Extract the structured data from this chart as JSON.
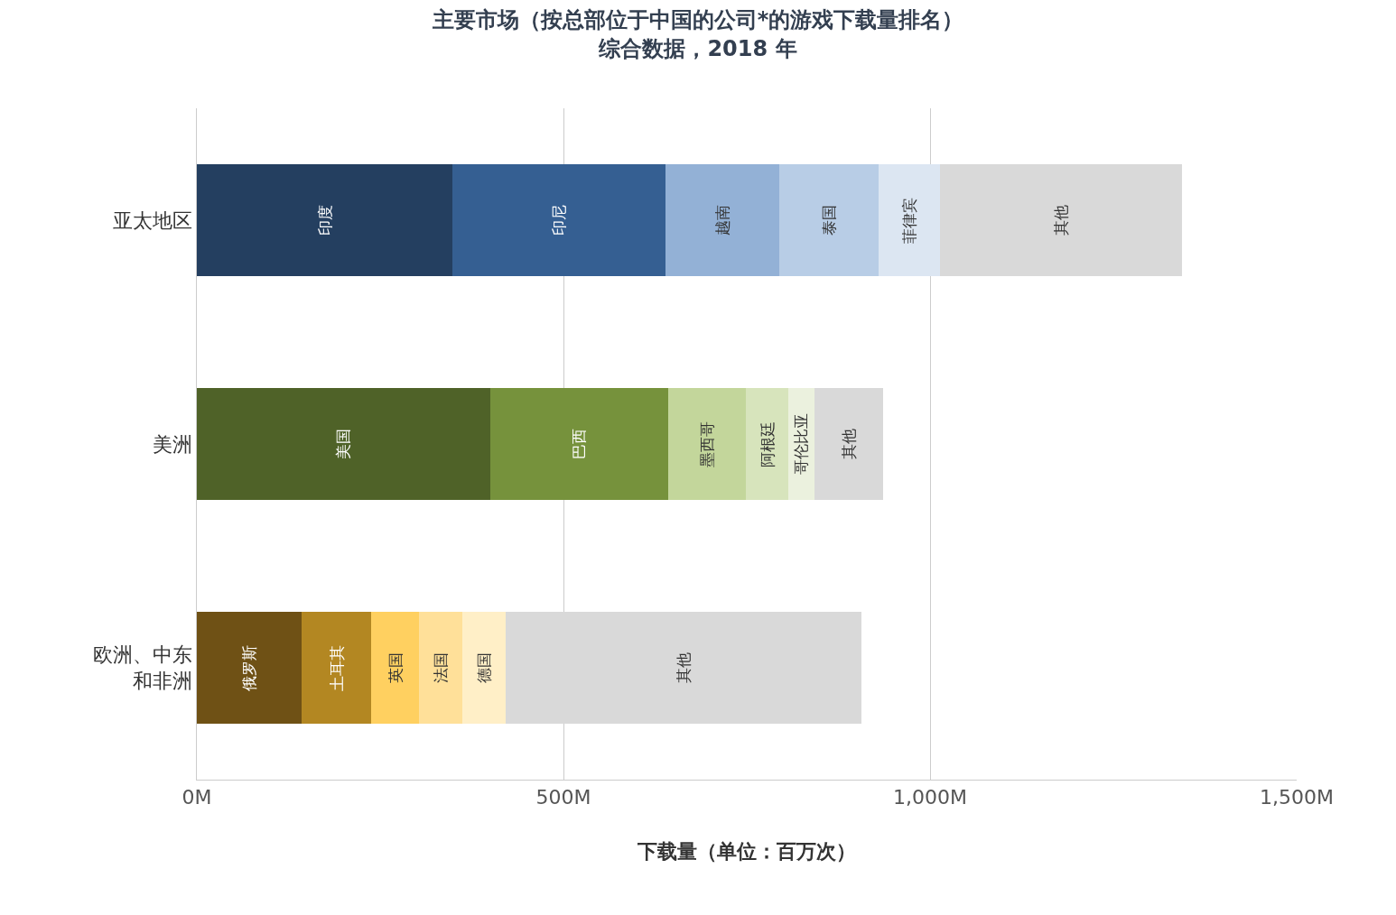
{
  "chart_data": {
    "type": "bar",
    "orientation": "horizontal",
    "stacked": true,
    "title": "主要市场（按总部位于中国的公司*的游戏下载量排名）",
    "subtitle": "综合数据，2018 年",
    "xlabel": "下载量（单位：百万次）",
    "categories": [
      "亚太地区",
      "美洲",
      "欧洲、中东和非洲"
    ],
    "series": [
      {
        "name": "印度",
        "color": "#243f60",
        "values": [
          349,
          null,
          null
        ]
      },
      {
        "name": "印尼",
        "color": "#355f92",
        "values": [
          290,
          null,
          null
        ]
      },
      {
        "name": "越南",
        "color": "#93b1d6",
        "values": [
          155,
          null,
          null
        ]
      },
      {
        "name": "泰国",
        "color": "#b8cde6",
        "values": [
          136,
          null,
          null
        ]
      },
      {
        "name": "菲律宾",
        "color": "#dce6f2",
        "values": [
          84,
          null,
          null
        ]
      },
      {
        "name": "其他",
        "color": "#d9d9d9",
        "values": [
          329,
          null,
          null
        ]
      },
      {
        "name": "美国",
        "color": "#4f6228",
        "values": [
          null,
          400,
          null
        ]
      },
      {
        "name": "巴西",
        "color": "#76923c",
        "values": [
          null,
          243,
          null
        ]
      },
      {
        "name": "墨西哥",
        "color": "#c3d69b",
        "values": [
          null,
          106,
          null
        ]
      },
      {
        "name": "阿根廷",
        "color": "#d7e4bc",
        "values": [
          null,
          58,
          null
        ]
      },
      {
        "name": "哥伦比亚",
        "color": "#ebf1de",
        "values": [
          null,
          35,
          null
        ]
      },
      {
        "name": "其他",
        "color": "#d9d9d9",
        "values": [
          null,
          94,
          null
        ]
      },
      {
        "name": "俄罗斯",
        "color": "#6f5115",
        "values": [
          null,
          null,
          143
        ]
      },
      {
        "name": "土耳其",
        "color": "#b38722",
        "values": [
          null,
          null,
          95
        ]
      },
      {
        "name": "英国",
        "color": "#ffd060",
        "values": [
          null,
          null,
          65
        ]
      },
      {
        "name": "法国",
        "color": "#ffe099",
        "values": [
          null,
          null,
          59
        ]
      },
      {
        "name": "德国",
        "color": "#ffefc7",
        "values": [
          null,
          null,
          59
        ]
      },
      {
        "name": "其他",
        "color": "#d9d9d9",
        "values": [
          null,
          null,
          485
        ]
      }
    ],
    "xlim": [
      0,
      1500
    ],
    "xticks": [
      {
        "value": 0,
        "label": "0M"
      },
      {
        "value": 500,
        "label": "500M"
      },
      {
        "value": 1000,
        "label": "1,000M"
      },
      {
        "value": 1500,
        "label": "1,500M"
      }
    ],
    "grid": "x",
    "legend": false
  }
}
